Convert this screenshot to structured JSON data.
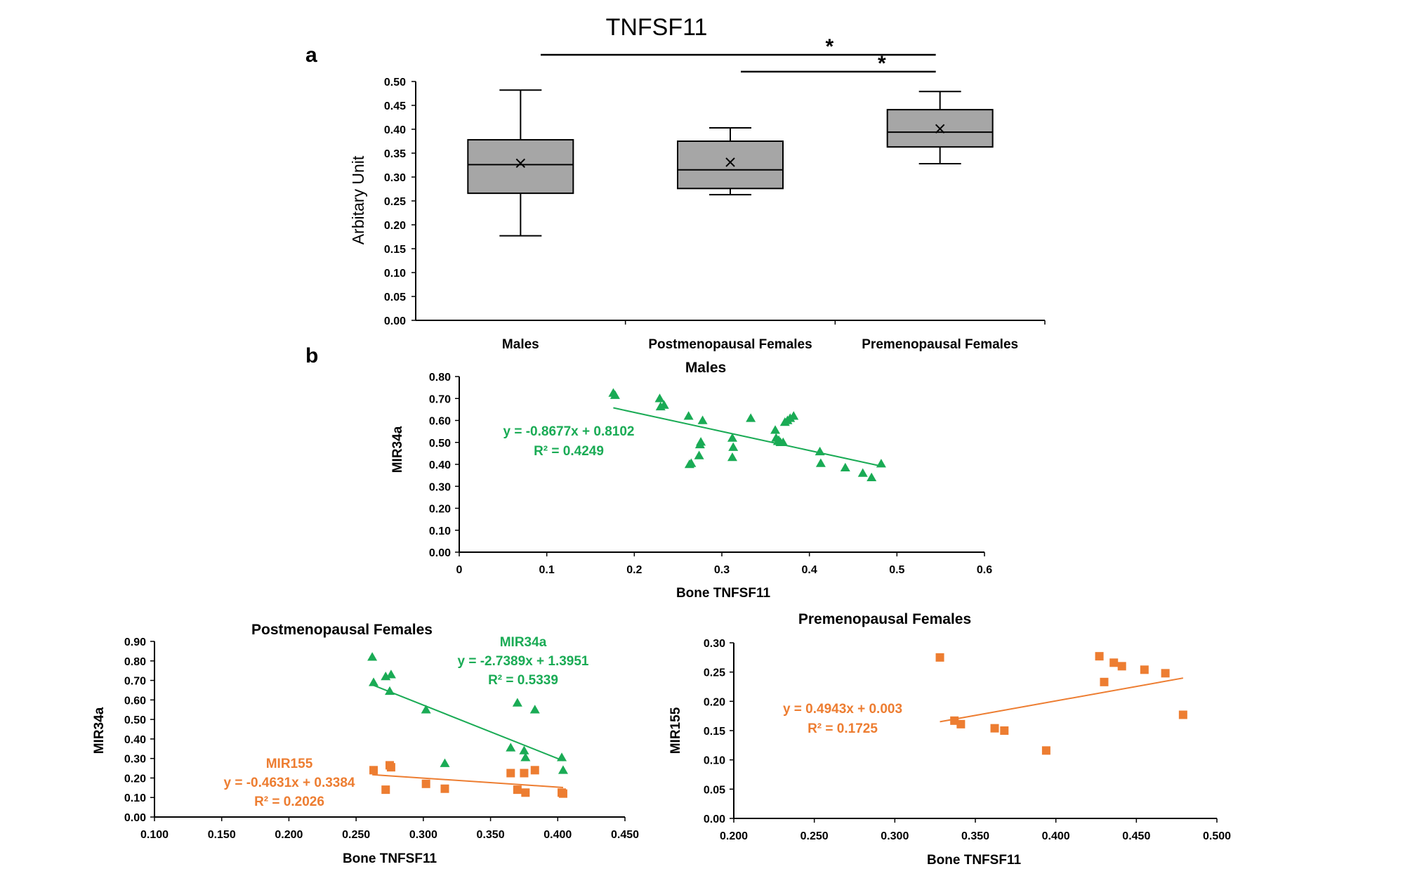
{
  "panel_labels": {
    "a": "a",
    "b": "b"
  },
  "chart_data": [
    {
      "type": "box",
      "id": "boxplot",
      "title": "TNFSF11",
      "ylabel": "Arbitary  Unit",
      "ylim": [
        0,
        0.5
      ],
      "yticks": [
        "0.00",
        "0.05",
        "0.10",
        "0.15",
        "0.20",
        "0.25",
        "0.30",
        "0.35",
        "0.40",
        "0.45",
        "0.50"
      ],
      "categories": [
        "Males",
        "Postmenopausal Females",
        "Premenopausal Females"
      ],
      "boxes": [
        {
          "min": 0.177,
          "q1": 0.266,
          "median": 0.326,
          "q3": 0.378,
          "max": 0.482,
          "mean": 0.329
        },
        {
          "min": 0.263,
          "q1": 0.276,
          "median": 0.315,
          "q3": 0.375,
          "max": 0.403,
          "mean": 0.331
        },
        {
          "min": 0.328,
          "q1": 0.363,
          "median": 0.394,
          "q3": 0.441,
          "max": 0.479,
          "mean": 0.401
        }
      ],
      "box_color": "#a6a6a6",
      "significance": [
        {
          "from": 0,
          "to": 2,
          "label": "*"
        },
        {
          "from": 1,
          "to": 2,
          "label": "*"
        }
      ]
    },
    {
      "type": "scatter",
      "id": "males",
      "title": "Males",
      "xlabel": "Bone TNFSF11",
      "ylabel": "MIR34a",
      "xlim": [
        0,
        0.6
      ],
      "ylim": [
        0,
        0.8
      ],
      "xticks": [
        "0",
        "0.1",
        "0.2",
        "0.3",
        "0.4",
        "0.5",
        "0.6"
      ],
      "yticks": [
        "0.00",
        "0.10",
        "0.20",
        "0.30",
        "0.40",
        "0.50",
        "0.60",
        "0.70",
        "0.80"
      ],
      "series": [
        {
          "name": "MIR34a",
          "marker": "triangle",
          "color": "#1aab55",
          "x": [
            0.176,
            0.178,
            0.229,
            0.23,
            0.234,
            0.262,
            0.265,
            0.263,
            0.278,
            0.276,
            0.275,
            0.274,
            0.312,
            0.313,
            0.312,
            0.333,
            0.361,
            0.362,
            0.364,
            0.365,
            0.367,
            0.37,
            0.372,
            0.375,
            0.378,
            0.382,
            0.412,
            0.413,
            0.441,
            0.461,
            0.471,
            0.482
          ],
          "y": [
            0.725,
            0.715,
            0.7,
            0.663,
            0.67,
            0.62,
            0.405,
            0.4,
            0.6,
            0.502,
            0.49,
            0.44,
            0.52,
            0.478,
            0.432,
            0.61,
            0.556,
            0.52,
            0.505,
            0.51,
            0.5,
            0.5,
            0.592,
            0.6,
            0.61,
            0.62,
            0.458,
            0.405,
            0.385,
            0.36,
            0.34,
            0.403
          ]
        }
      ],
      "trendlines": [
        {
          "label": "",
          "equation": "y = -0.8677x + 0.8102",
          "r2": "R² = 0.4249",
          "slope": -0.8677,
          "intercept": 0.8102,
          "x_range": [
            0.176,
            0.482
          ],
          "color": "#1aab55"
        }
      ]
    },
    {
      "type": "scatter",
      "id": "post",
      "title": "Postmenopausal Females",
      "xlabel": "Bone TNFSF11",
      "ylabel": "MIR34a",
      "xlim": [
        0.1,
        0.45
      ],
      "ylim": [
        0,
        0.9
      ],
      "xticks": [
        "0.100",
        "0.150",
        "0.200",
        "0.250",
        "0.300",
        "0.350",
        "0.400",
        "0.450"
      ],
      "yticks": [
        "0.00",
        "0.10",
        "0.20",
        "0.30",
        "0.40",
        "0.50",
        "0.60",
        "0.70",
        "0.80",
        "0.90"
      ],
      "series": [
        {
          "name": "MIR34a",
          "marker": "triangle",
          "color": "#1aab55",
          "x": [
            0.262,
            0.263,
            0.272,
            0.276,
            0.275,
            0.302,
            0.316,
            0.365,
            0.37,
            0.375,
            0.376,
            0.383,
            0.403,
            0.404
          ],
          "y": [
            0.82,
            0.69,
            0.72,
            0.73,
            0.645,
            0.55,
            0.275,
            0.355,
            0.585,
            0.34,
            0.305,
            0.55,
            0.305,
            0.24
          ]
        },
        {
          "name": "MIR155",
          "marker": "square",
          "color": "#ed7d31",
          "x": [
            0.263,
            0.272,
            0.275,
            0.276,
            0.302,
            0.316,
            0.365,
            0.37,
            0.375,
            0.376,
            0.383,
            0.403,
            0.404
          ],
          "y": [
            0.24,
            0.14,
            0.265,
            0.255,
            0.17,
            0.145,
            0.225,
            0.14,
            0.225,
            0.125,
            0.24,
            0.125,
            0.12
          ]
        }
      ],
      "trendlines": [
        {
          "label": "MIR34a",
          "equation": "y = -2.7389x + 1.3951",
          "r2": "R² = 0.5339",
          "slope": -2.7389,
          "intercept": 1.3951,
          "x_range": [
            0.262,
            0.404
          ],
          "color": "#1aab55"
        },
        {
          "label": "MIR155",
          "equation": "y = -0.4631x + 0.3384",
          "r2": "R² = 0.2026",
          "slope": -0.4631,
          "intercept": 0.3384,
          "x_range": [
            0.262,
            0.404
          ],
          "color": "#ed7d31"
        }
      ]
    },
    {
      "type": "scatter",
      "id": "pre",
      "title": "Premenopausal Females",
      "xlabel": "Bone TNFSF11",
      "ylabel": "MIR155",
      "xlim": [
        0.2,
        0.5
      ],
      "ylim": [
        0,
        0.3
      ],
      "xticks": [
        "0.200",
        "0.250",
        "0.300",
        "0.350",
        "0.400",
        "0.450",
        "0.500"
      ],
      "yticks": [
        "0.00",
        "0.05",
        "0.10",
        "0.15",
        "0.20",
        "0.25",
        "0.30"
      ],
      "series": [
        {
          "name": "MIR155",
          "marker": "square",
          "color": "#ed7d31",
          "x": [
            0.328,
            0.337,
            0.341,
            0.362,
            0.368,
            0.394,
            0.427,
            0.43,
            0.436,
            0.441,
            0.455,
            0.468,
            0.479
          ],
          "y": [
            0.275,
            0.167,
            0.161,
            0.154,
            0.15,
            0.116,
            0.277,
            0.233,
            0.266,
            0.26,
            0.254,
            0.248,
            0.177
          ]
        }
      ],
      "trendlines": [
        {
          "label": "",
          "equation": "y = 0.4943x + 0.003",
          "r2": "R² = 0.1725",
          "slope": 0.4943,
          "intercept": 0.003,
          "x_range": [
            0.328,
            0.479
          ],
          "color": "#ed7d31"
        }
      ]
    }
  ]
}
